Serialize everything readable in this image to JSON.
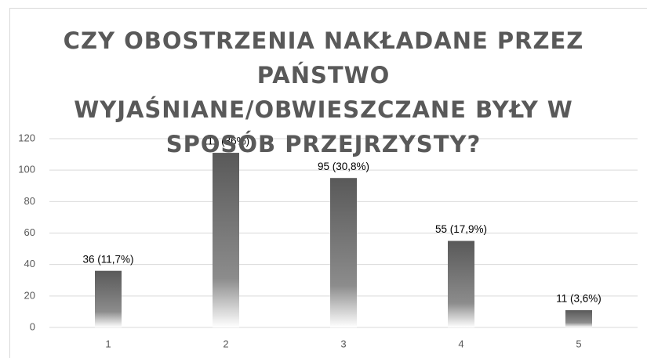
{
  "chart_data": {
    "type": "bar",
    "title": "CZY OBOSTRZENIA NAKŁADANE PRZEZ PAŃSTWO WYJAŚNIANE/OBWIESZCZANE BYŁY W SPOSÓB PRZEJRZYSTY?",
    "categories": [
      "1",
      "2",
      "3",
      "4",
      "5"
    ],
    "values": [
      36,
      111,
      95,
      55,
      11
    ],
    "value_labels": [
      "36 (11,7%)",
      "111 (36%)",
      "95 (30,8%)",
      "55 (17,9%)",
      "11 (3,6%)"
    ],
    "color": "#595959",
    "ylim": [
      0,
      120
    ],
    "yticks": [
      0,
      20,
      40,
      60,
      80,
      100,
      120
    ],
    "grid": true
  }
}
